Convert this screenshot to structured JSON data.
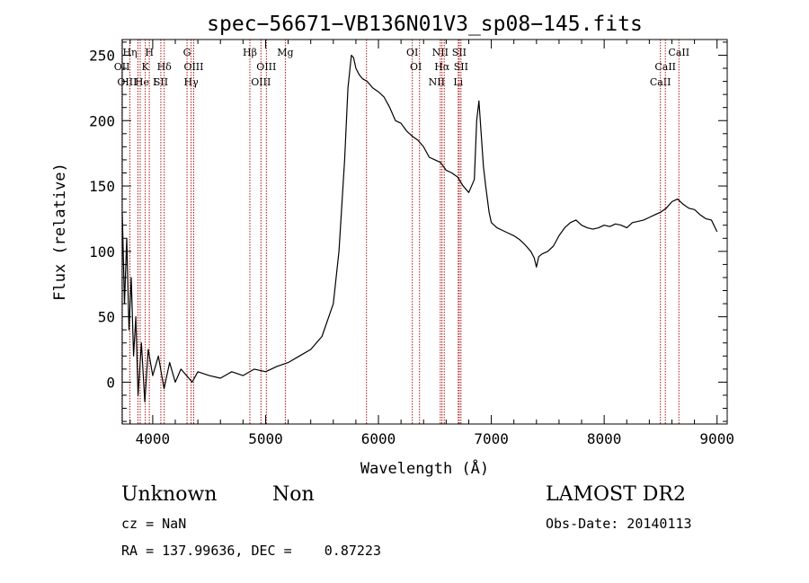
{
  "chart_data": {
    "type": "line",
    "title": "spec−56671−VB136N01V3_sp08−145.fits",
    "xlabel": "Wavelength (Å)",
    "ylabel": "Flux (relative)",
    "xlim": [
      3730,
      9090
    ],
    "ylim": [
      -32,
      262
    ],
    "xticks": [
      4000,
      5000,
      6000,
      7000,
      8000,
      9000
    ],
    "yticks": [
      0,
      50,
      100,
      150,
      200,
      250
    ],
    "grid": false,
    "line_color": "#000000",
    "marker_color": "#b01010",
    "series": [
      {
        "x": [
          3730,
          3750,
          3770,
          3790,
          3810,
          3830,
          3850,
          3870,
          3900,
          3930,
          3960,
          4000,
          4050,
          4100,
          4150,
          4200,
          4250,
          4300,
          4350,
          4400,
          4500,
          4600,
          4700,
          4800,
          4900,
          5000,
          5100,
          5200,
          5300,
          5400,
          5500,
          5600,
          5650,
          5700,
          5730,
          5760,
          5780,
          5800,
          5830,
          5860,
          5900,
          5950,
          6000,
          6050,
          6100,
          6150,
          6200,
          6250,
          6300,
          6350,
          6400,
          6450,
          6500,
          6550,
          6600,
          6650,
          6700,
          6750,
          6800,
          6850,
          6870,
          6890,
          6910,
          6930,
          6950,
          6980,
          7000,
          7050,
          7100,
          7150,
          7200,
          7250,
          7300,
          7350,
          7380,
          7400,
          7420,
          7450,
          7500,
          7550,
          7600,
          7650,
          7700,
          7750,
          7800,
          7850,
          7900,
          7950,
          8000,
          8050,
          8100,
          8150,
          8200,
          8250,
          8300,
          8350,
          8400,
          8450,
          8500,
          8550,
          8600,
          8650,
          8700,
          8750,
          8800,
          8850,
          8900,
          8950,
          9000
        ],
        "y": [
          130,
          60,
          110,
          40,
          80,
          20,
          50,
          -10,
          30,
          -15,
          25,
          5,
          20,
          -5,
          15,
          0,
          10,
          5,
          0,
          8,
          5,
          3,
          8,
          5,
          10,
          8,
          12,
          15,
          20,
          25,
          35,
          60,
          100,
          170,
          225,
          250,
          248,
          240,
          235,
          232,
          230,
          225,
          222,
          218,
          210,
          200,
          198,
          192,
          188,
          185,
          180,
          172,
          170,
          168,
          162,
          160,
          157,
          150,
          145,
          155,
          200,
          215,
          190,
          165,
          150,
          130,
          122,
          118,
          116,
          114,
          112,
          109,
          105,
          100,
          95,
          88,
          96,
          98,
          100,
          104,
          112,
          118,
          122,
          124,
          120,
          118,
          117,
          118,
          120,
          119,
          121,
          120,
          118,
          122,
          123,
          124,
          126,
          128,
          130,
          133,
          138,
          140,
          136,
          133,
          132,
          128,
          125,
          124,
          115
        ]
      }
    ],
    "lines": [
      {
        "wl": 3727,
        "labels": [
          {
            "t": "OII",
            "row": 1,
            "dx": 0
          }
        ]
      },
      {
        "wl": 3798,
        "labels": [
          {
            "t": "Hη",
            "row": 0,
            "dx": 0
          }
        ]
      },
      {
        "wl": 3869,
        "labels": [
          {
            "t": "OIII",
            "row": 2,
            "dx": -12
          }
        ]
      },
      {
        "wl": 3889,
        "labels": [
          {
            "t": "He",
            "row": 2,
            "dx": 2
          }
        ]
      },
      {
        "wl": 3934,
        "labels": [
          {
            "t": "K",
            "row": 1,
            "dx": 0
          }
        ]
      },
      {
        "wl": 3970,
        "labels": [
          {
            "t": "H",
            "row": 0,
            "dx": 0
          },
          {
            "t": "I",
            "row": 2,
            "dx": 6
          }
        ]
      },
      {
        "wl": 4072,
        "labels": [
          {
            "t": "SII",
            "row": 2,
            "dx": 0
          }
        ]
      },
      {
        "wl": 4102,
        "labels": [
          {
            "t": "Hδ",
            "row": 1,
            "dx": 0
          }
        ]
      },
      {
        "wl": 4304,
        "labels": [
          {
            "t": "G",
            "row": 0,
            "dx": 0
          }
        ]
      },
      {
        "wl": 4340,
        "labels": [
          {
            "t": "Hγ",
            "row": 2,
            "dx": 0
          }
        ]
      },
      {
        "wl": 4363,
        "labels": [
          {
            "t": "OIII",
            "row": 1,
            "dx": 0
          }
        ]
      },
      {
        "wl": 4861,
        "labels": [
          {
            "t": "Hβ",
            "row": 0,
            "dx": 0
          }
        ]
      },
      {
        "wl": 4959,
        "labels": [
          {
            "t": "OIII",
            "row": 2,
            "dx": 0
          }
        ]
      },
      {
        "wl": 5007,
        "labels": [
          {
            "t": "OIII",
            "row": 1,
            "dx": 0
          }
        ]
      },
      {
        "wl": 5175,
        "labels": [
          {
            "t": "Mg",
            "row": 0,
            "dx": 0
          }
        ]
      },
      {
        "wl": 5894,
        "labels": []
      },
      {
        "wl": 6300,
        "labels": [
          {
            "t": "OI",
            "row": 0,
            "dx": 0
          }
        ]
      },
      {
        "wl": 6364,
        "labels": [
          {
            "t": "OI",
            "row": 1,
            "dx": -4
          }
        ]
      },
      {
        "wl": 6548,
        "labels": [
          {
            "t": "NII",
            "row": 0,
            "dx": 0
          },
          {
            "t": "NII",
            "row": 2,
            "dx": -4
          }
        ]
      },
      {
        "wl": 6563,
        "labels": [
          {
            "t": "Hα",
            "row": 1,
            "dx": 0
          }
        ]
      },
      {
        "wl": 6583,
        "labels": []
      },
      {
        "wl": 6707,
        "labels": [
          {
            "t": "Li",
            "row": 2,
            "dx": 0
          }
        ]
      },
      {
        "wl": 6716,
        "labels": [
          {
            "t": "SII",
            "row": 0,
            "dx": 0
          }
        ]
      },
      {
        "wl": 6731,
        "labels": [
          {
            "t": "SII",
            "row": 1,
            "dx": 0
          }
        ]
      },
      {
        "wl": 8498,
        "labels": [
          {
            "t": "CaII",
            "row": 2,
            "dx": 0
          }
        ]
      },
      {
        "wl": 8542,
        "labels": [
          {
            "t": "CaII",
            "row": 1,
            "dx": 0
          }
        ]
      },
      {
        "wl": 8662,
        "labels": [
          {
            "t": "CaII",
            "row": 0,
            "dx": 0
          }
        ]
      }
    ]
  },
  "info": {
    "object_class": "Unknown",
    "object_subclass": "Non",
    "survey": "LAMOST DR2",
    "cz": "cz = NaN",
    "obs_date": "Obs-Date: 20140113",
    "radec": "RA = 137.99636, DEC =    0.87223"
  }
}
